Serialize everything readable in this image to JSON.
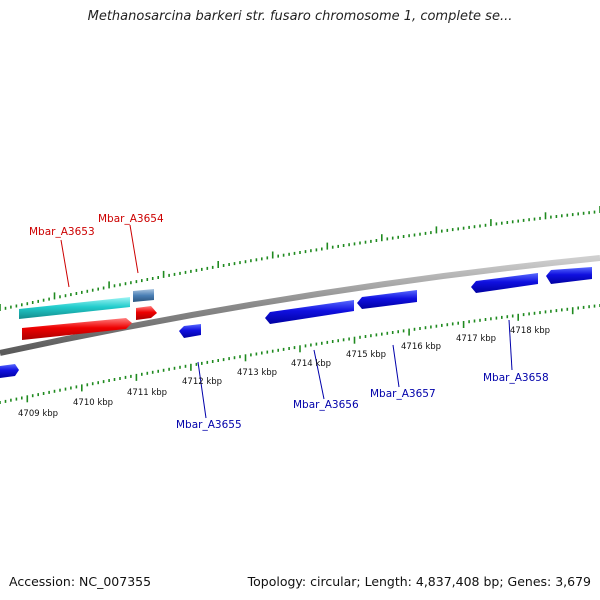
{
  "title": "Methanosarcina barkeri str. fusaro chromosome 1, complete se...",
  "footer": {
    "accession": "Accession: NC_007355",
    "summary": "Topology: circular; Length: 4,837,408 bp; Genes: 3,679"
  },
  "colors": {
    "backbone": "#8a8a8a",
    "tick": "#1f8a1f",
    "forward_label": "#cc0000",
    "reverse_label": "#0000aa",
    "cds_reverse": "#1010e0",
    "cds_forward": "#ee0000",
    "gene_forward": "#22cccc",
    "gene_alt": "#4a7fb5"
  },
  "scale_labels": [
    "4709 kbp",
    "4710 kbp",
    "4711 kbp",
    "4712 kbp",
    "4713 kbp",
    "4714 kbp",
    "4715 kbp",
    "4716 kbp",
    "4717 kbp",
    "4718 kbp"
  ],
  "gene_labels": [
    {
      "text": "Mbar_A3653",
      "strand": "forward"
    },
    {
      "text": "Mbar_A3654",
      "strand": "forward"
    },
    {
      "text": "Mbar_A3655",
      "strand": "reverse"
    },
    {
      "text": "Mbar_A3656",
      "strand": "reverse"
    },
    {
      "text": "Mbar_A3657",
      "strand": "reverse"
    },
    {
      "text": "Mbar_A3658",
      "strand": "reverse"
    }
  ]
}
